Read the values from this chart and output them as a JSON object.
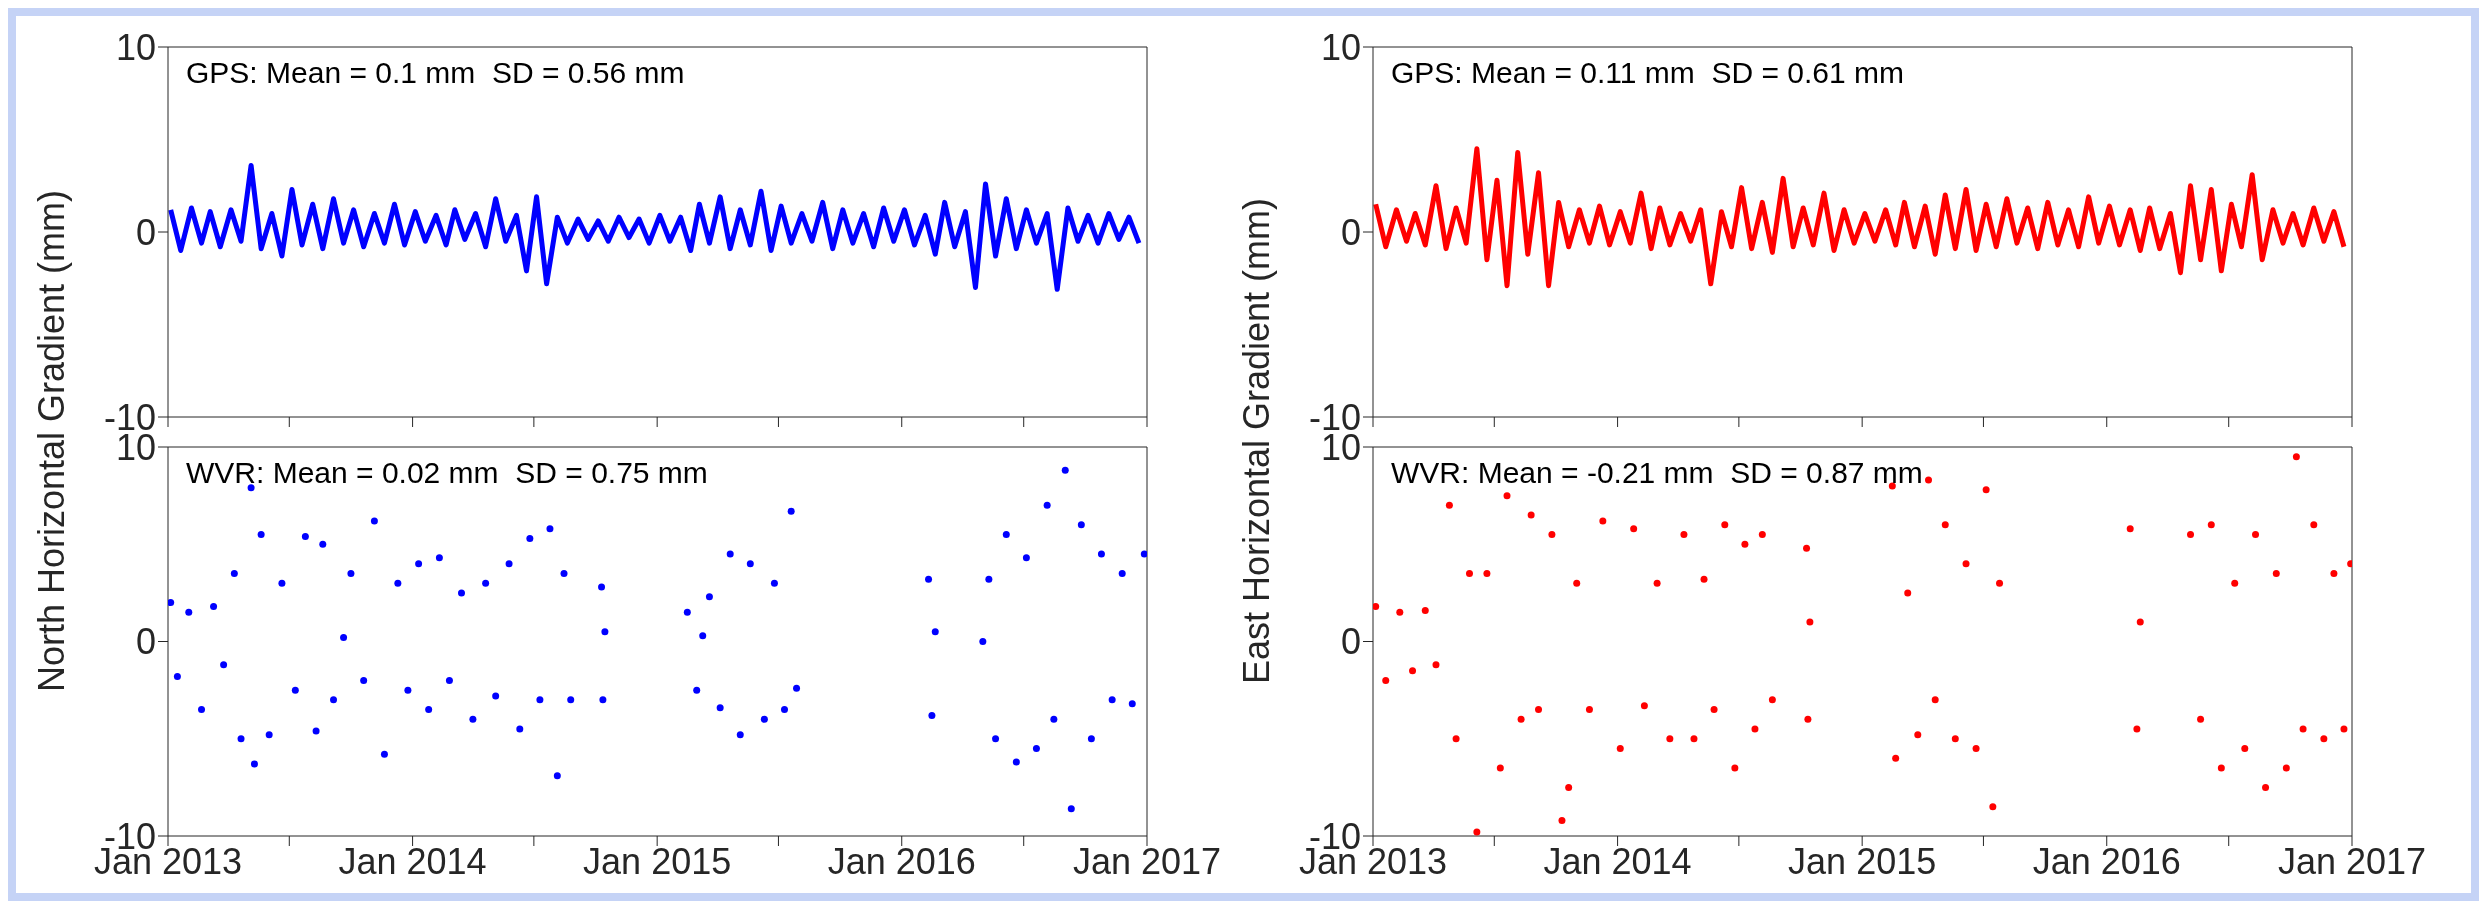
{
  "chart_data": [
    {
      "type": "line",
      "annotations": [
        "GPS: Mean = 0.1 mm  SD = 0.56 mm"
      ],
      "xlim": [
        "2013-01",
        "2017-01"
      ],
      "xticks": [
        {
          "value": "2013-01",
          "label": null
        },
        {
          "value": "2013-07",
          "label": null
        },
        {
          "value": "2014-01",
          "label": null
        },
        {
          "value": "2014-07",
          "label": null
        },
        {
          "value": "2015-01",
          "label": null
        },
        {
          "value": "2015-07",
          "label": null
        },
        {
          "value": "2016-01",
          "label": null
        },
        {
          "value": "2016-07",
          "label": null
        },
        {
          "value": "2017-01",
          "label": null
        }
      ],
      "ylim": [
        -10,
        10
      ],
      "yticks": [
        -10,
        0,
        10
      ],
      "tick_labels": "y",
      "x": [
        "2013-01-05",
        "2013-01-20",
        "2013-02-05",
        "2013-02-20",
        "2013-03-05",
        "2013-03-20",
        "2013-04-05",
        "2013-04-20",
        "2013-05-05",
        "2013-05-20",
        "2013-06-05",
        "2013-06-20",
        "2013-07-05",
        "2013-07-20",
        "2013-08-05",
        "2013-08-20",
        "2013-09-05",
        "2013-09-20",
        "2013-10-05",
        "2013-10-20",
        "2013-11-05",
        "2013-11-20",
        "2013-12-05",
        "2013-12-20",
        "2014-01-05",
        "2014-01-20",
        "2014-02-05",
        "2014-02-20",
        "2014-03-05",
        "2014-03-20",
        "2014-04-05",
        "2014-04-20",
        "2014-05-05",
        "2014-05-20",
        "2014-06-05",
        "2014-06-20",
        "2014-07-05",
        "2014-07-20",
        "2014-08-05",
        "2014-08-20",
        "2014-09-05",
        "2014-09-20",
        "2014-10-05",
        "2014-10-20",
        "2014-11-05",
        "2014-11-20",
        "2014-12-05",
        "2014-12-20",
        "2015-01-05",
        "2015-01-20",
        "2015-02-05",
        "2015-02-20",
        "2015-03-05",
        "2015-03-20",
        "2015-04-05",
        "2015-04-20",
        "2015-05-05",
        "2015-05-20",
        "2015-06-05",
        "2015-06-20",
        "2015-07-05",
        "2015-07-20",
        "2015-08-05",
        "2015-08-20",
        "2015-09-05",
        "2015-09-20",
        "2015-10-05",
        "2015-10-20",
        "2015-11-05",
        "2015-11-20",
        "2015-12-05",
        "2015-12-20",
        "2016-01-05",
        "2016-01-20",
        "2016-02-05",
        "2016-02-20",
        "2016-03-05",
        "2016-03-20",
        "2016-04-05",
        "2016-04-20",
        "2016-05-05",
        "2016-05-20",
        "2016-06-05",
        "2016-06-20",
        "2016-07-05",
        "2016-07-20",
        "2016-08-05",
        "2016-08-20",
        "2016-09-05",
        "2016-09-20",
        "2016-10-05",
        "2016-10-20",
        "2016-11-05",
        "2016-11-20",
        "2016-12-05",
        "2016-12-20"
      ],
      "series": [
        {
          "color": "#0000ff",
          "values": [
            1.2,
            -1.0,
            1.3,
            -0.6,
            1.1,
            -0.8,
            1.2,
            -0.5,
            3.6,
            -0.9,
            1.0,
            -1.3,
            2.3,
            -0.7,
            1.5,
            -0.9,
            1.8,
            -0.6,
            1.2,
            -0.8,
            1.0,
            -0.6,
            1.5,
            -0.7,
            1.1,
            -0.5,
            0.9,
            -0.7,
            1.2,
            -0.4,
            1.0,
            -0.8,
            1.8,
            -0.5,
            0.9,
            -2.1,
            1.9,
            -2.8,
            0.8,
            -0.6,
            0.7,
            -0.4,
            0.6,
            -0.5,
            0.8,
            -0.3,
            0.7,
            -0.6,
            0.9,
            -0.5,
            0.8,
            -1.0,
            1.5,
            -0.6,
            1.9,
            -0.9,
            1.2,
            -0.7,
            2.2,
            -1.0,
            1.4,
            -0.6,
            1.0,
            -0.5,
            1.6,
            -0.9,
            1.2,
            -0.6,
            1.0,
            -0.8,
            1.3,
            -0.5,
            1.2,
            -0.7,
            0.9,
            -1.2,
            1.6,
            -0.8,
            1.1,
            -3.0,
            2.6,
            -1.3,
            1.8,
            -0.9,
            1.2,
            -0.6,
            1.0,
            -3.1,
            1.3,
            -0.5,
            0.9,
            -0.6,
            1.0,
            -0.4,
            0.8,
            -0.6
          ]
        }
      ]
    },
    {
      "type": "line",
      "annotations": [
        "GPS: Mean = 0.11 mm  SD = 0.61 mm"
      ],
      "xlim": [
        "2013-01",
        "2017-01"
      ],
      "xticks": [
        {
          "value": "2013-01",
          "label": null
        },
        {
          "value": "2013-07",
          "label": null
        },
        {
          "value": "2014-01",
          "label": null
        },
        {
          "value": "2014-07",
          "label": null
        },
        {
          "value": "2015-01",
          "label": null
        },
        {
          "value": "2015-07",
          "label": null
        },
        {
          "value": "2016-01",
          "label": null
        },
        {
          "value": "2016-07",
          "label": null
        },
        {
          "value": "2017-01",
          "label": null
        }
      ],
      "ylim": [
        -10,
        10
      ],
      "yticks": [
        -10,
        0,
        10
      ],
      "tick_labels": "y",
      "x": [
        "2013-01-05",
        "2013-01-20",
        "2013-02-05",
        "2013-02-20",
        "2013-03-05",
        "2013-03-20",
        "2013-04-05",
        "2013-04-20",
        "2013-05-05",
        "2013-05-20",
        "2013-06-05",
        "2013-06-20",
        "2013-07-05",
        "2013-07-20",
        "2013-08-05",
        "2013-08-20",
        "2013-09-05",
        "2013-09-20",
        "2013-10-05",
        "2013-10-20",
        "2013-11-05",
        "2013-11-20",
        "2013-12-05",
        "2013-12-20",
        "2014-01-05",
        "2014-01-20",
        "2014-02-05",
        "2014-02-20",
        "2014-03-05",
        "2014-03-20",
        "2014-04-05",
        "2014-04-20",
        "2014-05-05",
        "2014-05-20",
        "2014-06-05",
        "2014-06-20",
        "2014-07-05",
        "2014-07-20",
        "2014-08-05",
        "2014-08-20",
        "2014-09-05",
        "2014-09-20",
        "2014-10-05",
        "2014-10-20",
        "2014-11-05",
        "2014-11-20",
        "2014-12-05",
        "2014-12-20",
        "2015-01-05",
        "2015-01-20",
        "2015-02-05",
        "2015-02-20",
        "2015-03-05",
        "2015-03-20",
        "2015-04-05",
        "2015-04-20",
        "2015-05-05",
        "2015-05-20",
        "2015-06-05",
        "2015-06-20",
        "2015-07-05",
        "2015-07-20",
        "2015-08-05",
        "2015-08-20",
        "2015-09-05",
        "2015-09-20",
        "2015-10-05",
        "2015-10-20",
        "2015-11-05",
        "2015-11-20",
        "2015-12-05",
        "2015-12-20",
        "2016-01-05",
        "2016-01-20",
        "2016-02-05",
        "2016-02-20",
        "2016-03-05",
        "2016-03-20",
        "2016-04-05",
        "2016-04-20",
        "2016-05-05",
        "2016-05-20",
        "2016-06-05",
        "2016-06-20",
        "2016-07-05",
        "2016-07-20",
        "2016-08-05",
        "2016-08-20",
        "2016-09-05",
        "2016-09-20",
        "2016-10-05",
        "2016-10-20",
        "2016-11-05",
        "2016-11-20",
        "2016-12-05",
        "2016-12-20"
      ],
      "series": [
        {
          "color": "#ff0000",
          "values": [
            1.5,
            -0.8,
            1.2,
            -0.5,
            1.0,
            -0.7,
            2.5,
            -0.9,
            1.3,
            -0.6,
            4.5,
            -1.5,
            2.8,
            -2.9,
            4.3,
            -1.2,
            3.2,
            -2.9,
            1.6,
            -0.8,
            1.2,
            -0.6,
            1.4,
            -0.7,
            1.1,
            -0.6,
            2.1,
            -0.9,
            1.3,
            -0.7,
            1.0,
            -0.5,
            1.2,
            -2.8,
            1.1,
            -0.8,
            2.4,
            -0.9,
            1.6,
            -1.1,
            2.9,
            -0.8,
            1.3,
            -0.7,
            2.1,
            -1.0,
            1.2,
            -0.6,
            1.0,
            -0.5,
            1.2,
            -0.7,
            1.6,
            -0.8,
            1.4,
            -1.2,
            2.0,
            -0.9,
            2.3,
            -1.0,
            1.5,
            -0.8,
            1.8,
            -0.6,
            1.3,
            -0.9,
            1.6,
            -0.7,
            1.2,
            -0.8,
            1.9,
            -0.6,
            1.4,
            -0.7,
            1.2,
            -1.0,
            1.3,
            -0.9,
            1.0,
            -2.2,
            2.5,
            -1.5,
            2.3,
            -2.1,
            1.5,
            -0.8,
            3.1,
            -1.5,
            1.2,
            -0.6,
            1.0,
            -0.7,
            1.3,
            -0.5,
            1.1,
            -0.8
          ]
        }
      ]
    },
    {
      "type": "scatter",
      "ylabel": "North Horizontal Gradient (mm)",
      "marker": "circle",
      "annotations": [
        "WVR: Mean = 0.02 mm  SD = 0.75 mm"
      ],
      "xlim": [
        "2013-01",
        "2017-01"
      ],
      "xticks": [
        {
          "value": "2013-01",
          "label": "Jan 2013"
        },
        {
          "value": "2013-07",
          "label": null
        },
        {
          "value": "2014-01",
          "label": "Jan 2014"
        },
        {
          "value": "2014-07",
          "label": null
        },
        {
          "value": "2015-01",
          "label": "Jan 2015"
        },
        {
          "value": "2015-07",
          "label": null
        },
        {
          "value": "2016-01",
          "label": "Jan 2016"
        },
        {
          "value": "2016-07",
          "label": null
        },
        {
          "value": "2017-01",
          "label": "Jan 2017"
        }
      ],
      "ylim": [
        -10,
        10
      ],
      "yticks": [
        -10,
        0,
        10
      ],
      "x": [
        "2013-01-05",
        "2013-01-15",
        "2013-02-01",
        "2013-02-20",
        "2013-03-10",
        "2013-03-25",
        "2013-04-10",
        "2013-04-20",
        "2013-05-05",
        "2013-05-10",
        "2013-05-20",
        "2013-06-01",
        "2013-06-20",
        "2013-07-10",
        "2013-07-25",
        "2013-08-10",
        "2013-08-20",
        "2013-09-05",
        "2013-09-20",
        "2013-10-01",
        "2013-10-20",
        "2013-11-05",
        "2013-11-20",
        "2013-12-10",
        "2013-12-25",
        "2014-01-10",
        "2014-01-25",
        "2014-02-10",
        "2014-02-25",
        "2014-03-15",
        "2014-04-01",
        "2014-04-20",
        "2014-05-05",
        "2014-05-25",
        "2014-06-10",
        "2014-06-25",
        "2014-07-10",
        "2014-07-25",
        "2014-08-05",
        "2014-08-15",
        "2014-08-25",
        "2014-10-10",
        "2014-10-12",
        "2014-10-15",
        "2015-02-15",
        "2015-03-01",
        "2015-03-10",
        "2015-03-20",
        "2015-04-05",
        "2015-04-20",
        "2015-05-05",
        "2015-05-20",
        "2015-06-10",
        "2015-06-25",
        "2015-07-10",
        "2015-07-20",
        "2015-07-28",
        "2016-02-10",
        "2016-02-15",
        "2016-02-20",
        "2016-05-01",
        "2016-05-10",
        "2016-05-20",
        "2016-06-05",
        "2016-06-20",
        "2016-07-05",
        "2016-07-20",
        "2016-08-05",
        "2016-08-15",
        "2016-09-01",
        "2016-09-10",
        "2016-09-25",
        "2016-10-10",
        "2016-10-25",
        "2016-11-10",
        "2016-11-25",
        "2016-12-10",
        "2016-12-28"
      ],
      "series": [
        {
          "color": "#0000ff",
          "values": [
            2.0,
            -1.8,
            1.5,
            -3.5,
            1.8,
            -1.2,
            3.5,
            -5.0,
            7.9,
            -6.3,
            5.5,
            -4.8,
            3.0,
            -2.5,
            5.4,
            -4.6,
            5.0,
            -3.0,
            0.2,
            3.5,
            -2.0,
            6.2,
            -5.8,
            3.0,
            -2.5,
            4.0,
            -3.5,
            4.3,
            -2.0,
            2.5,
            -4.0,
            3.0,
            -2.8,
            4.0,
            -4.5,
            5.3,
            -3.0,
            5.8,
            -6.9,
            3.5,
            -3.0,
            2.8,
            -3.0,
            0.5,
            1.5,
            -2.5,
            0.3,
            2.3,
            -3.4,
            4.5,
            -4.8,
            4.0,
            -4.0,
            3.0,
            -3.5,
            6.7,
            -2.4,
            3.2,
            -3.8,
            0.5,
            0.0,
            3.2,
            -5.0,
            5.5,
            -6.2,
            4.3,
            -5.5,
            7.0,
            -4.0,
            8.8,
            -8.6,
            6.0,
            -5.0,
            4.5,
            -3.0,
            3.5,
            -3.2,
            4.5
          ]
        }
      ]
    },
    {
      "type": "scatter",
      "ylabel": "East Horizontal Gradient (mm)",
      "marker": "circle",
      "annotations": [
        "WVR: Mean = -0.21 mm  SD = 0.87 mm"
      ],
      "xlim": [
        "2013-01",
        "2017-01"
      ],
      "xticks": [
        {
          "value": "2013-01",
          "label": "Jan 2013"
        },
        {
          "value": "2013-07",
          "label": null
        },
        {
          "value": "2014-01",
          "label": "Jan 2014"
        },
        {
          "value": "2014-07",
          "label": null
        },
        {
          "value": "2015-01",
          "label": "Jan 2015"
        },
        {
          "value": "2015-07",
          "label": null
        },
        {
          "value": "2016-01",
          "label": "Jan 2016"
        },
        {
          "value": "2016-07",
          "label": null
        },
        {
          "value": "2017-01",
          "label": "Jan 2017"
        }
      ],
      "ylim": [
        -10,
        10
      ],
      "yticks": [
        -10,
        0,
        10
      ],
      "x": [
        "2013-01-05",
        "2013-01-20",
        "2013-02-10",
        "2013-03-01",
        "2013-03-20",
        "2013-04-05",
        "2013-04-25",
        "2013-05-05",
        "2013-05-25",
        "2013-06-05",
        "2013-06-20",
        "2013-07-10",
        "2013-07-20",
        "2013-08-10",
        "2013-08-25",
        "2013-09-05",
        "2013-09-25",
        "2013-10-10",
        "2013-10-20",
        "2013-11-01",
        "2013-11-20",
        "2013-12-10",
        "2014-01-05",
        "2014-01-25",
        "2014-02-10",
        "2014-03-01",
        "2014-03-20",
        "2014-04-10",
        "2014-04-25",
        "2014-05-10",
        "2014-05-25",
        "2014-06-10",
        "2014-06-25",
        "2014-07-10",
        "2014-07-25",
        "2014-08-05",
        "2014-08-20",
        "2014-10-10",
        "2014-10-12",
        "2014-10-15",
        "2015-02-15",
        "2015-02-20",
        "2015-03-10",
        "2015-03-25",
        "2015-04-10",
        "2015-04-20",
        "2015-05-05",
        "2015-05-20",
        "2015-06-05",
        "2015-06-20",
        "2015-07-05",
        "2015-07-15",
        "2015-07-25",
        "2016-02-05",
        "2016-02-15",
        "2016-02-20",
        "2016-05-05",
        "2016-05-20",
        "2016-06-05",
        "2016-06-20",
        "2016-07-10",
        "2016-07-25",
        "2016-08-10",
        "2016-08-25",
        "2016-09-10",
        "2016-09-25",
        "2016-10-10",
        "2016-10-20",
        "2016-11-05",
        "2016-11-20",
        "2016-12-05",
        "2016-12-20",
        "2016-12-30"
      ],
      "series": [
        {
          "color": "#ff0000",
          "values": [
            1.8,
            -2.0,
            1.5,
            -1.5,
            1.6,
            -1.2,
            7.0,
            -5.0,
            3.5,
            -9.8,
            3.5,
            -6.5,
            7.5,
            -4.0,
            6.5,
            -3.5,
            5.5,
            -9.2,
            -7.5,
            3.0,
            -3.5,
            6.2,
            -5.5,
            5.8,
            -3.3,
            3.0,
            -5.0,
            5.5,
            -5.0,
            3.2,
            -3.5,
            6.0,
            -6.5,
            5.0,
            -4.5,
            5.5,
            -3.0,
            4.8,
            -4.0,
            1.0,
            8.0,
            -6.0,
            2.5,
            -4.8,
            8.3,
            -3.0,
            6.0,
            -5.0,
            4.0,
            -5.5,
            7.8,
            -8.5,
            3.0,
            5.8,
            -4.5,
            1.0,
            5.5,
            -4.0,
            6.0,
            -6.5,
            3.0,
            -5.5,
            5.5,
            -7.5,
            3.5,
            -6.5,
            9.5,
            -4.5,
            6.0,
            -5.0,
            3.5,
            -4.5,
            4.0
          ]
        }
      ]
    }
  ]
}
